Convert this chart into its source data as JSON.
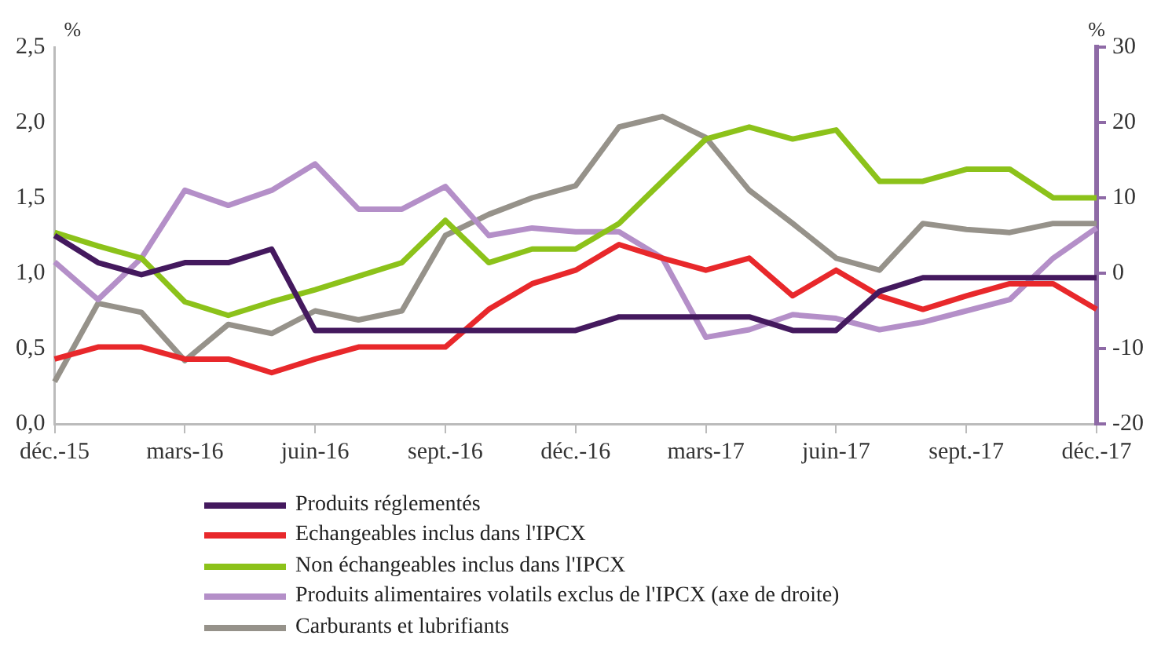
{
  "chart_data": {
    "type": "line",
    "categories": [
      "déc.-15",
      null,
      null,
      "mars-16",
      null,
      null,
      "juin-16",
      null,
      null,
      "sept.-16",
      null,
      null,
      "déc.-16",
      null,
      null,
      "mars-17",
      null,
      null,
      "juin-17",
      null,
      null,
      "sept.-17",
      null,
      null,
      "déc.-17"
    ],
    "ylabel": "%",
    "y2label": "%",
    "ylim": [
      0,
      2.5
    ],
    "yticks": [
      {
        "value": 0,
        "label": "0,0"
      },
      {
        "value": 0.5,
        "label": "0,5"
      },
      {
        "value": 1,
        "label": "1,0"
      },
      {
        "value": 1.5,
        "label": "1,5"
      },
      {
        "value": 2,
        "label": "2,0"
      },
      {
        "value": 2.5,
        "label": "2,5"
      }
    ],
    "y2lim": [
      -20,
      30
    ],
    "y2ticks": [
      -20,
      -10,
      0,
      10,
      20,
      30
    ],
    "grid": false,
    "legend": "bottom",
    "marker": "none",
    "line_style": "solid",
    "series": [
      {
        "name": "Produits réglementés",
        "color": "#44195e",
        "values": [
          1.25,
          1.07,
          0.99,
          1.07,
          1.07,
          1.16,
          0.62,
          0.62,
          0.62,
          0.62,
          0.62,
          0.62,
          0.62,
          0.71,
          0.71,
          0.71,
          0.71,
          0.62,
          0.62,
          0.88,
          0.97,
          0.97,
          0.97,
          0.97,
          0.97
        ]
      },
      {
        "name": "Echangeables inclus dans l'IPCX",
        "color": "#e8282b",
        "values": [
          0.43,
          0.51,
          0.51,
          0.43,
          0.43,
          0.34,
          0.43,
          0.51,
          0.51,
          0.51,
          0.76,
          0.93,
          1.02,
          1.19,
          1.1,
          1.02,
          1.1,
          0.85,
          1.02,
          0.85,
          0.76,
          0.85,
          0.93,
          0.93,
          0.76
        ]
      },
      {
        "name": "Non échangeables inclus dans l'IPCX",
        "color": "#8cc21a",
        "values": [
          1.27,
          1.18,
          1.1,
          0.81,
          0.72,
          0.81,
          0.89,
          0.98,
          1.07,
          1.35,
          1.07,
          1.16,
          1.16,
          1.33,
          1.61,
          1.89,
          1.97,
          1.89,
          1.95,
          1.61,
          1.61,
          1.69,
          1.69,
          1.5,
          1.5
        ]
      },
      {
        "name": "Produits alimentaires volatils exclus de l'IPCX (axe de droite)",
        "color": "#b48fc8",
        "axis": "y2",
        "values": [
          1.5,
          -3.5,
          2,
          11,
          9,
          11,
          14.5,
          8.5,
          8.5,
          11.5,
          5,
          6,
          5.5,
          5.5,
          2,
          -8.5,
          -7.5,
          -5.5,
          -6,
          -7.5,
          -6.5,
          -5,
          -3.5,
          2,
          6
        ]
      },
      {
        "name": "Carburants et lubrifiants",
        "color": "#96928a",
        "values": [
          0.28,
          0.8,
          0.74,
          0.42,
          0.66,
          0.6,
          0.75,
          0.69,
          0.75,
          1.25,
          1.39,
          1.5,
          1.58,
          1.97,
          2.04,
          1.9,
          1.55,
          1.33,
          1.1,
          1.02,
          1.33,
          1.29,
          1.27,
          1.33,
          1.33
        ]
      }
    ]
  }
}
